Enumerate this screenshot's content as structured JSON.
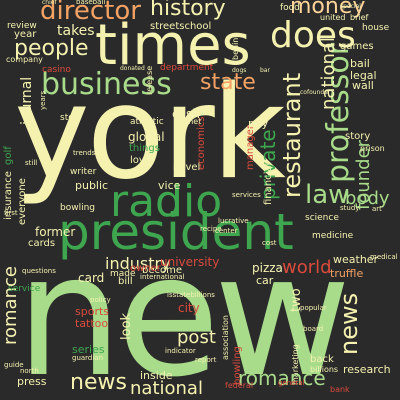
{
  "colors": {
    "background": "#2a2a2a",
    "cream": "#f5f2b0",
    "lightgreen": "#a8dc8a",
    "green": "#3ea64f",
    "orange": "#f4a264",
    "peach": "#fcd49a",
    "red": "#d94a3d",
    "yellow": "#f7e98f"
  },
  "words": [
    {
      "text": "new",
      "color": "lightgreen"
    },
    {
      "text": "york",
      "color": "cream"
    },
    {
      "text": "times",
      "color": "cream"
    },
    {
      "text": "president",
      "color": "green"
    },
    {
      "text": "business",
      "color": "lightgreen"
    },
    {
      "text": "radio",
      "color": "green"
    },
    {
      "text": "does",
      "color": "cream"
    },
    {
      "text": "director",
      "color": "orange"
    },
    {
      "text": "history",
      "color": "cream"
    },
    {
      "text": "money",
      "color": "peach"
    },
    {
      "text": "people",
      "color": "cream"
    },
    {
      "text": "state",
      "color": "orange"
    },
    {
      "text": "law",
      "color": "lightgreen"
    },
    {
      "text": "professor",
      "color": "lightgreen"
    },
    {
      "text": "restaurant",
      "color": "cream"
    },
    {
      "text": "private",
      "color": "green"
    },
    {
      "text": "news",
      "color": "cream"
    },
    {
      "text": "national",
      "color": "cream"
    },
    {
      "text": "romance",
      "color": "lightgreen"
    },
    {
      "text": "journal",
      "color": "cream"
    },
    {
      "text": "post",
      "color": "cream"
    },
    {
      "text": "world",
      "color": "red"
    },
    {
      "text": "industry",
      "color": "cream"
    },
    {
      "text": "founder",
      "color": "cream"
    },
    {
      "text": "body",
      "color": "lightgreen"
    },
    {
      "text": "make",
      "color": "cream"
    },
    {
      "text": "cash",
      "color": "cream"
    },
    {
      "text": "one",
      "color": "cream"
    },
    {
      "text": "takes",
      "color": "cream"
    },
    {
      "text": "streetschool",
      "color": "cream"
    },
    {
      "text": "former",
      "color": "cream"
    },
    {
      "text": "card",
      "color": "cream"
    },
    {
      "text": "cards",
      "color": "cream"
    },
    {
      "text": "sports",
      "color": "red"
    },
    {
      "text": "tattoo",
      "color": "red"
    },
    {
      "text": "series",
      "color": "green"
    },
    {
      "text": "university",
      "color": "red"
    },
    {
      "text": "pizza",
      "color": "cream"
    },
    {
      "text": "car",
      "color": "cream"
    },
    {
      "text": "city",
      "color": "red"
    },
    {
      "text": "research",
      "color": "cream"
    },
    {
      "text": "weather",
      "color": "cream"
    },
    {
      "text": "truffle",
      "color": "orange"
    },
    {
      "text": "global",
      "color": "cream"
    },
    {
      "text": "love",
      "color": "cream"
    },
    {
      "text": "pay",
      "color": "cream"
    },
    {
      "text": "vice",
      "color": "cream"
    },
    {
      "text": "public",
      "color": "cream"
    },
    {
      "text": "casino",
      "color": "red"
    },
    {
      "text": "bail",
      "color": "cream"
    },
    {
      "text": "legal",
      "color": "cream"
    },
    {
      "text": "wall",
      "color": "cream"
    },
    {
      "text": "story",
      "color": "cream"
    },
    {
      "text": "become",
      "color": "cream"
    },
    {
      "text": "made",
      "color": "cream"
    },
    {
      "text": "owner",
      "color": "red"
    },
    {
      "text": "look",
      "color": "cream"
    },
    {
      "text": "bill",
      "color": "cream"
    },
    {
      "text": "two",
      "color": "cream"
    },
    {
      "text": "press",
      "color": "cream"
    },
    {
      "text": "inside",
      "color": "cream"
    },
    {
      "text": "service",
      "color": "green"
    },
    {
      "text": "year",
      "color": "cream"
    },
    {
      "text": "review",
      "color": "cream"
    },
    {
      "text": "company",
      "color": "cream"
    },
    {
      "text": "food",
      "color": "cream"
    },
    {
      "text": "united",
      "color": "cream"
    },
    {
      "text": "brief",
      "color": "cream"
    },
    {
      "text": "games",
      "color": "cream"
    },
    {
      "text": "house",
      "color": "cream"
    },
    {
      "text": "atlantic",
      "color": "cream"
    },
    {
      "text": "planet",
      "color": "cream"
    },
    {
      "text": "economics",
      "color": "red"
    },
    {
      "text": "manager",
      "color": "red"
    },
    {
      "text": "financial",
      "color": "cream"
    },
    {
      "text": "things",
      "color": "green"
    },
    {
      "text": "novel",
      "color": "cream"
    },
    {
      "text": "science",
      "color": "cream"
    },
    {
      "text": "medicine",
      "color": "cream"
    },
    {
      "text": "magazine",
      "color": "cream"
    },
    {
      "text": "everyone",
      "color": "cream"
    },
    {
      "text": "insurance",
      "color": "green"
    },
    {
      "text": "golf",
      "color": "cream"
    },
    {
      "text": "stop",
      "color": "cream"
    },
    {
      "text": "bowling",
      "color": "red"
    },
    {
      "text": "marketing",
      "color": "cream"
    },
    {
      "text": "back",
      "color": "cream"
    },
    {
      "text": "billions",
      "color": "cream"
    },
    {
      "text": "association",
      "color": "cream"
    },
    {
      "text": "federal",
      "color": "red"
    },
    {
      "text": "bank",
      "color": "red"
    },
    {
      "text": "trends",
      "color": "cream"
    },
    {
      "text": "prison",
      "color": "cream"
    },
    {
      "text": "consumer",
      "color": "cream"
    },
    {
      "text": "release",
      "color": "red"
    },
    {
      "text": "department",
      "color": "cream"
    },
    {
      "text": "donated",
      "color": "cream"
    },
    {
      "text": "baseball",
      "color": "cream"
    },
    {
      "text": "isstatebillions",
      "color": "cream"
    },
    {
      "text": "indicator",
      "color": "cream"
    },
    {
      "text": "report",
      "color": "cream"
    },
    {
      "text": "international",
      "color": "cream"
    },
    {
      "text": "guardian",
      "color": "cream"
    },
    {
      "text": "questions",
      "color": "cream"
    },
    {
      "text": "policy",
      "color": "cream"
    },
    {
      "text": "medical",
      "color": "cream"
    },
    {
      "text": "cost",
      "color": "cream"
    },
    {
      "text": "writer",
      "color": "cream"
    },
    {
      "text": "recipe",
      "color": "red"
    },
    {
      "text": "general",
      "color": "cream"
    },
    {
      "text": "study",
      "color": "cream"
    },
    {
      "text": "popular",
      "color": "cream"
    },
    {
      "text": "board",
      "color": "cream"
    },
    {
      "text": "still",
      "color": "cream"
    },
    {
      "text": "black",
      "color": "cream"
    },
    {
      "text": "years",
      "color": "cream"
    },
    {
      "text": "behind",
      "color": "cream"
    },
    {
      "text": "north",
      "color": "cream"
    },
    {
      "text": "guide",
      "color": "cream"
    },
    {
      "text": "center",
      "color": "cream"
    },
    {
      "text": "dogs",
      "color": "cream"
    },
    {
      "text": "bar",
      "color": "cream"
    },
    {
      "text": "first",
      "color": "cream"
    },
    {
      "text": "art",
      "color": "cream"
    },
    {
      "text": "lucrative",
      "color": "cream"
    },
    {
      "text": "services",
      "color": "cream"
    },
    {
      "text": "special",
      "color": "cream"
    },
    {
      "text": "chief",
      "color": "cream"
    },
    {
      "text": "cofounder",
      "color": "cream"
    }
  ]
}
